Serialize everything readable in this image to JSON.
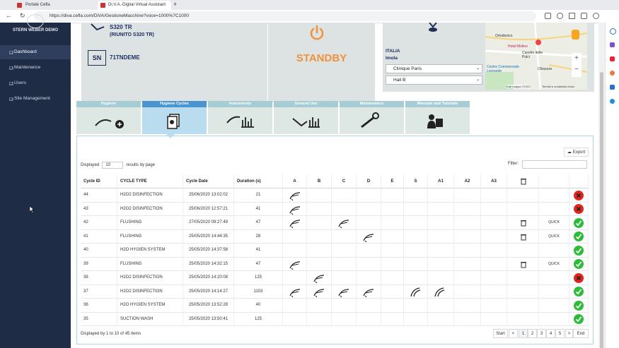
{
  "browser": {
    "tabs": [
      "Portale Cefla",
      "Di.V.A.-Digital Virtual Assistant"
    ],
    "url": "https://diva.cefla.com/DiVA/GestioneMacchine?voce=1000%7C1000"
  },
  "sidebar": {
    "brand": "STERN WEBER DEMO",
    "menu": [
      "Dashboard",
      "Maintenance",
      "Users",
      "Site Management"
    ]
  },
  "machine": {
    "model": "S320 TR",
    "model_full": "(RIUNITO S320 TR)",
    "sn_label": "SN",
    "serial": "71TNDEME",
    "status": "STANDBY"
  },
  "location": {
    "country": "ITALIA",
    "city": "Imola",
    "clinic": "Clinique Paris",
    "room": "Hall B"
  },
  "map": {
    "labels": [
      "Ortodonico",
      "Hotel Molino",
      "Casetto delle Pulci",
      "Centro Commerciale Leonardo",
      "Chiusura"
    ],
    "attribution": "Dati mappa ©2022",
    "terms": "Termini e condizioni d'uso"
  },
  "tabs": [
    "Hygiene",
    "Hygiene Cycles",
    "Instruments",
    "General Use",
    "Maintenance",
    "Manuals and Tutorials"
  ],
  "export": "Export",
  "page_size": {
    "prefix": "Displayed",
    "value": "10",
    "suffix": "results by page"
  },
  "filter": "Filter:",
  "table": {
    "columns": [
      "Cycle ID",
      "CYCLE TYPE",
      "Cycle Date",
      "Duration (s)",
      "A",
      "B",
      "C",
      "D",
      "E",
      "S",
      "A1",
      "A2",
      "A3"
    ],
    "rows": [
      [
        "44",
        "H2O2 DISINFECTION",
        "25/06/2020 13:02:02",
        "21"
      ],
      [
        "43",
        "H2O2 DISINFECTION",
        "25/06/2020 12:57:21",
        "41"
      ],
      [
        "42",
        "FLUSHING",
        "27/05/2020 09:27:49",
        "47"
      ],
      [
        "41",
        "FLUSHING",
        "25/05/2020 14:44:35",
        "28"
      ],
      [
        "40",
        "H2O HYGIEN SYSTEM",
        "25/05/2020 14:37:58",
        "41"
      ],
      [
        "39",
        "FLUSHING",
        "25/05/2020 14:32:15",
        "47"
      ],
      [
        "38",
        "H2O2 DISINFECTION",
        "25/05/2020 14:20:08",
        "125"
      ],
      [
        "37",
        "H2O2 DISINFECTION",
        "25/05/2020 14:14:27",
        "1103"
      ],
      [
        "36",
        "H2O HYGIEN SYSTEM",
        "25/05/2020 13:52:28",
        "40"
      ],
      [
        "35",
        "SUCTION WASH",
        "25/05/2020 13:50:41",
        "125"
      ]
    ],
    "quick": "QUICK"
  },
  "footer": {
    "info": "Displayed by 1 to 10 of 45 items",
    "pagination": [
      "Start",
      "<",
      "1",
      "2",
      "3",
      "4",
      "5",
      ">",
      "End"
    ]
  }
}
